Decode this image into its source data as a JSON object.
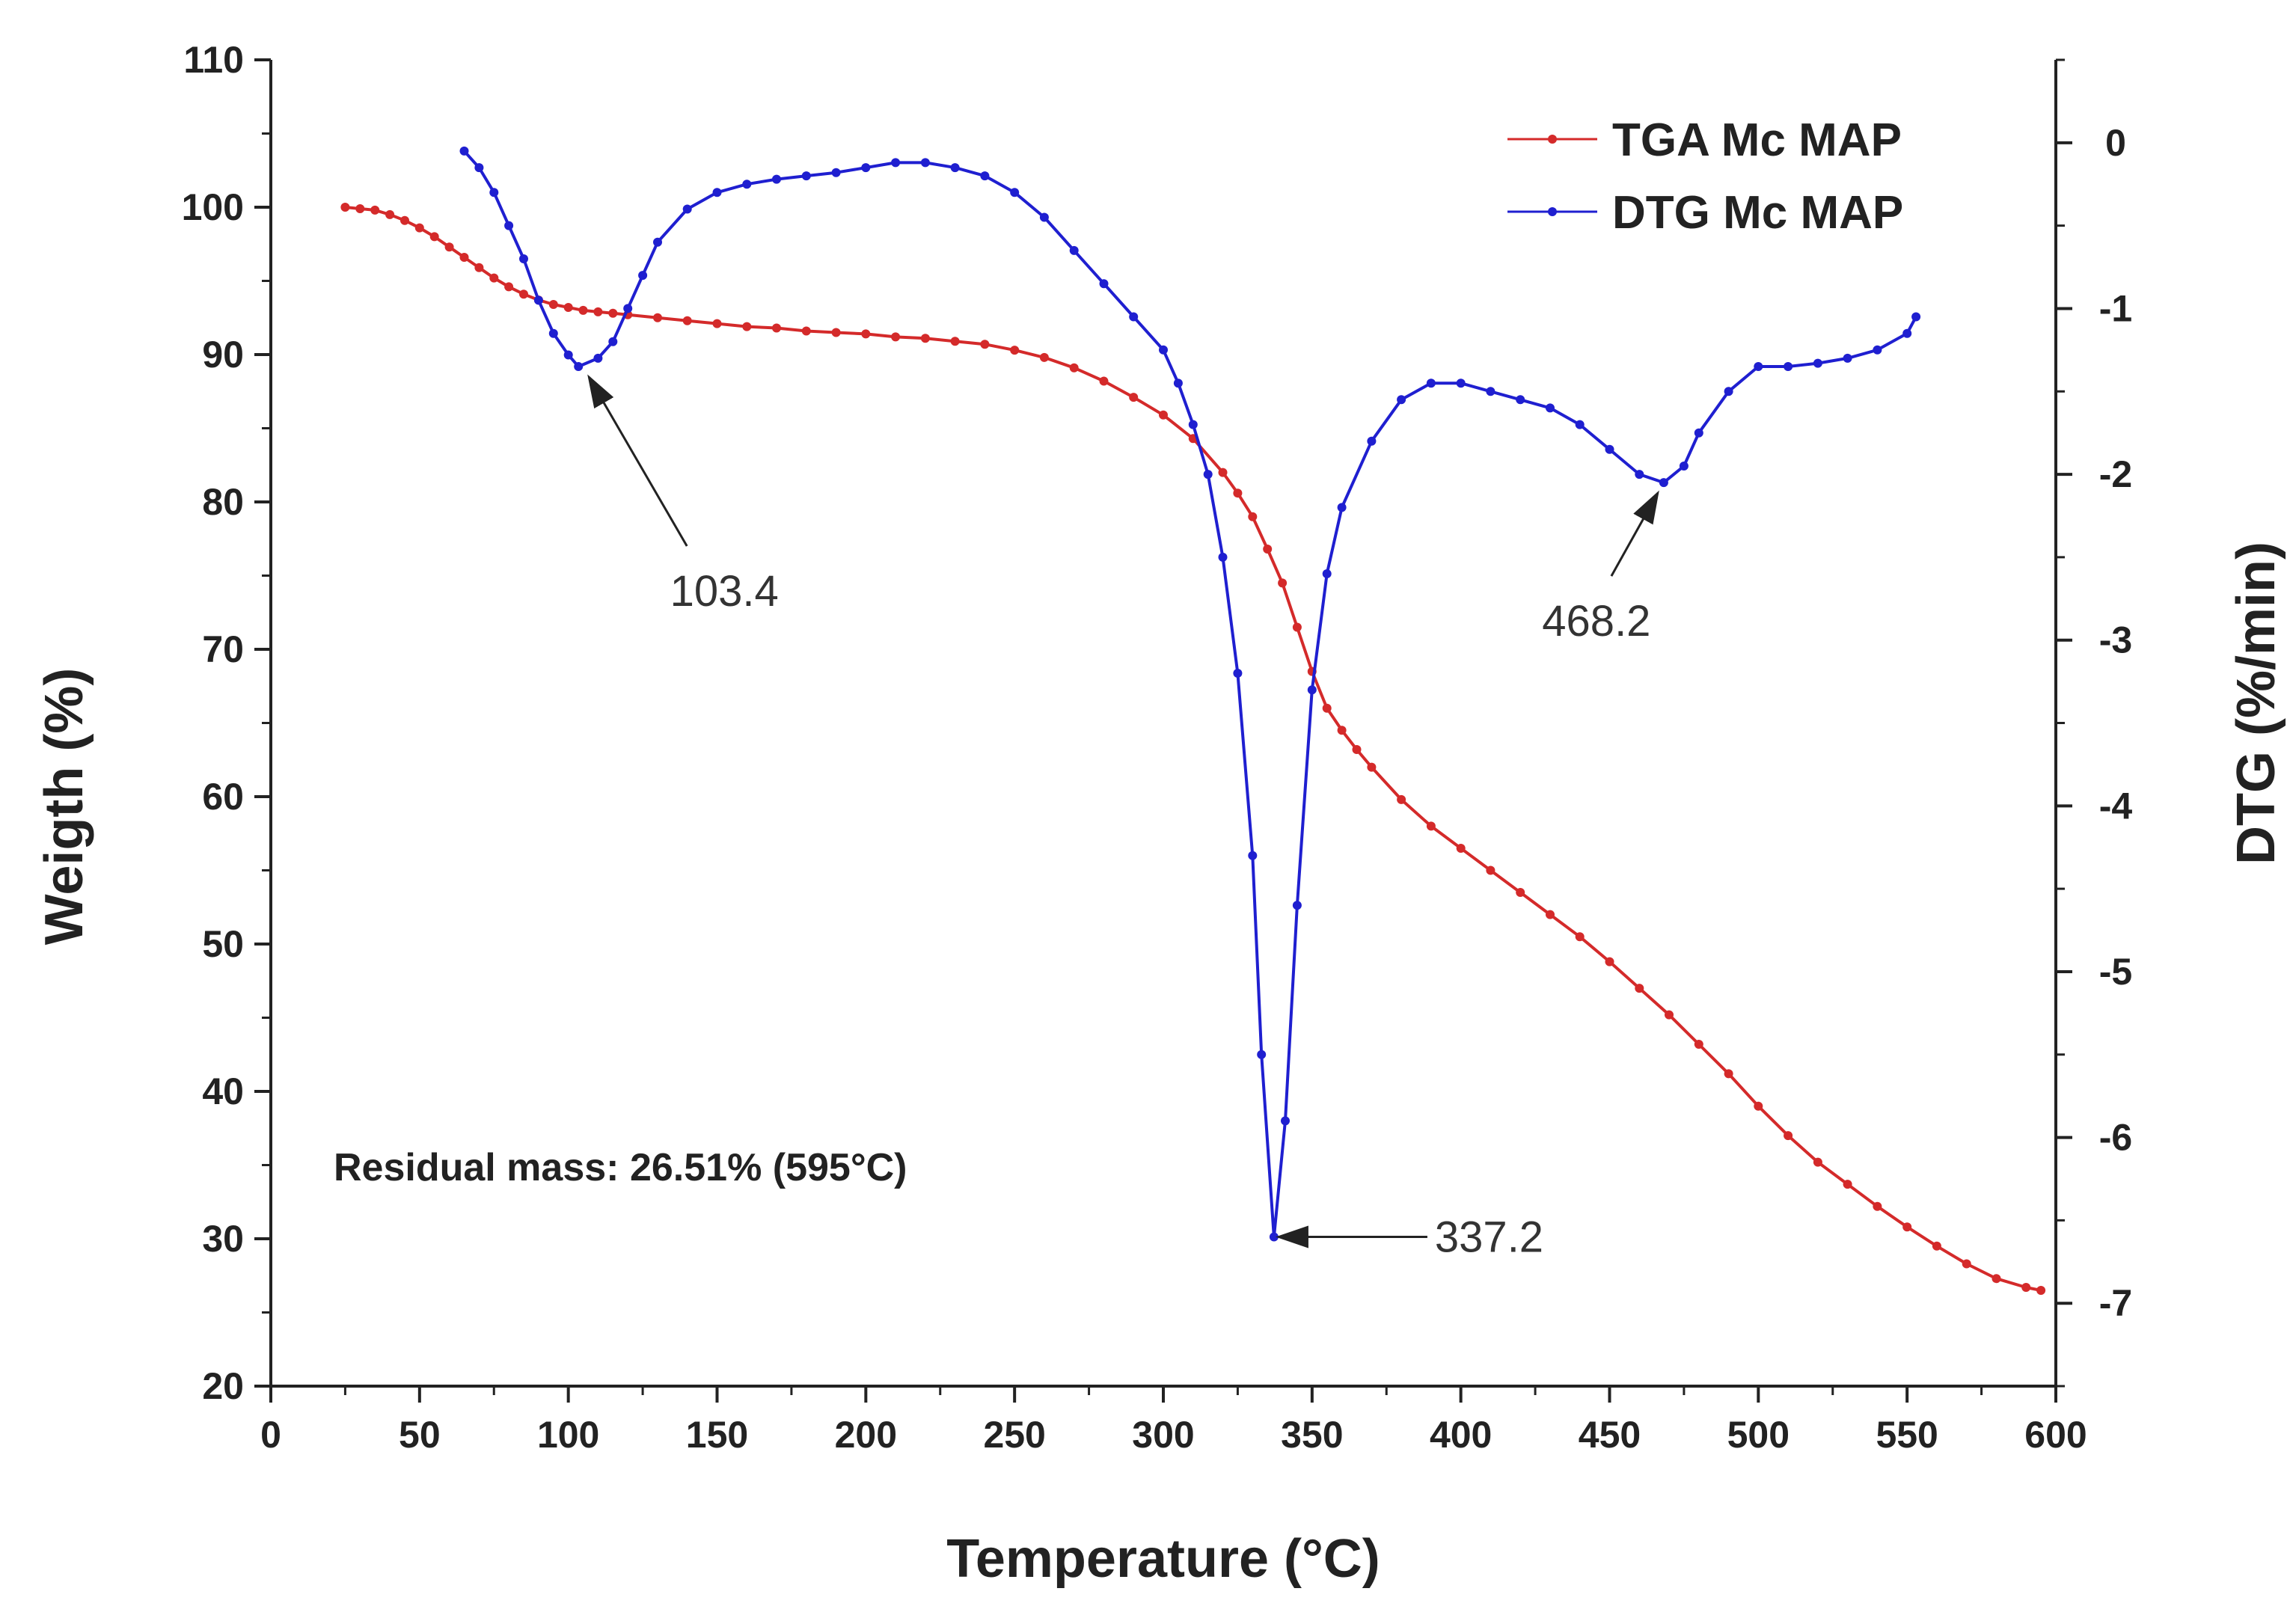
{
  "chart_data": {
    "type": "line",
    "title": "",
    "xlabel": "Temperature (°C)",
    "ylabel": "Weigth (%)",
    "y2label": "DTG (%/min)",
    "xlim": [
      0,
      600
    ],
    "ylim": [
      20,
      110
    ],
    "y2lim": [
      -7.5,
      0.5
    ],
    "xticks": [
      0,
      50,
      100,
      150,
      200,
      250,
      300,
      350,
      400,
      450,
      500,
      550,
      600
    ],
    "yticks": [
      20,
      30,
      40,
      50,
      60,
      70,
      80,
      90,
      100,
      110
    ],
    "y2ticks": [
      0,
      -1,
      -2,
      -3,
      -4,
      -5,
      -6,
      -7
    ],
    "legend_position": "top-right",
    "colors": {
      "tga": "#d42a2a",
      "dtg": "#1f1fd0",
      "axis": "#222222",
      "annotation": "#222222"
    },
    "series": [
      {
        "name": "TGA Mc MAP",
        "axis": "left",
        "color": "#d42a2a",
        "x": [
          25,
          30,
          35,
          40,
          45,
          50,
          55,
          60,
          65,
          70,
          75,
          80,
          85,
          90,
          95,
          100,
          105,
          110,
          115,
          120,
          130,
          140,
          150,
          160,
          170,
          180,
          190,
          200,
          210,
          220,
          230,
          240,
          250,
          260,
          270,
          280,
          290,
          300,
          310,
          320,
          325,
          330,
          335,
          340,
          345,
          350,
          355,
          360,
          365,
          370,
          380,
          390,
          400,
          410,
          420,
          430,
          440,
          450,
          460,
          470,
          480,
          490,
          500,
          510,
          520,
          530,
          540,
          550,
          560,
          570,
          580,
          590,
          595
        ],
        "values": [
          100.0,
          99.9,
          99.8,
          99.5,
          99.1,
          98.6,
          98.0,
          97.3,
          96.6,
          95.9,
          95.2,
          94.6,
          94.1,
          93.7,
          93.4,
          93.2,
          93.0,
          92.9,
          92.8,
          92.7,
          92.5,
          92.3,
          92.1,
          91.9,
          91.8,
          91.6,
          91.5,
          91.4,
          91.2,
          91.1,
          90.9,
          90.7,
          90.3,
          89.8,
          89.1,
          88.2,
          87.1,
          85.9,
          84.3,
          82.0,
          80.6,
          79.0,
          76.8,
          74.5,
          71.5,
          68.5,
          66.0,
          64.5,
          63.2,
          62.0,
          59.8,
          58.0,
          56.5,
          55.0,
          53.5,
          52.0,
          50.5,
          48.8,
          47.0,
          45.2,
          43.2,
          41.2,
          39.0,
          37.0,
          35.2,
          33.7,
          32.2,
          30.8,
          29.5,
          28.3,
          27.3,
          26.7,
          26.5
        ]
      },
      {
        "name": "DTG Mc MAP",
        "axis": "right",
        "color": "#1f1fd0",
        "x": [
          65,
          70,
          75,
          80,
          85,
          90,
          95,
          100,
          103.4,
          110,
          115,
          120,
          125,
          130,
          140,
          150,
          160,
          170,
          180,
          190,
          200,
          210,
          220,
          230,
          240,
          250,
          260,
          270,
          280,
          290,
          300,
          305,
          310,
          315,
          320,
          325,
          330,
          333,
          337.2,
          341,
          345,
          350,
          355,
          360,
          370,
          380,
          390,
          400,
          410,
          420,
          430,
          440,
          450,
          460,
          468.2,
          475,
          480,
          490,
          500,
          510,
          520,
          530,
          540,
          550,
          553
        ],
        "values": [
          -0.05,
          -0.15,
          -0.3,
          -0.5,
          -0.7,
          -0.95,
          -1.15,
          -1.28,
          -1.35,
          -1.3,
          -1.2,
          -1.0,
          -0.8,
          -0.6,
          -0.4,
          -0.3,
          -0.25,
          -0.22,
          -0.2,
          -0.18,
          -0.15,
          -0.12,
          -0.12,
          -0.15,
          -0.2,
          -0.3,
          -0.45,
          -0.65,
          -0.85,
          -1.05,
          -1.25,
          -1.45,
          -1.7,
          -2.0,
          -2.5,
          -3.2,
          -4.3,
          -5.5,
          -6.6,
          -5.9,
          -4.6,
          -3.3,
          -2.6,
          -2.2,
          -1.8,
          -1.55,
          -1.45,
          -1.45,
          -1.5,
          -1.55,
          -1.6,
          -1.7,
          -1.85,
          -2.0,
          -2.05,
          -1.95,
          -1.75,
          -1.5,
          -1.35,
          -1.35,
          -1.33,
          -1.3,
          -1.25,
          -1.15,
          -1.05
        ]
      }
    ],
    "annotations": [
      {
        "text": "103.4",
        "x": 103.4,
        "y": -1.35,
        "axis": "right"
      },
      {
        "text": "337.2",
        "x": 337.2,
        "y": -6.6,
        "axis": "right"
      },
      {
        "text": "468.2",
        "x": 468.2,
        "y": -2.05,
        "axis": "right"
      }
    ],
    "note": "Residual mass: 26.51% (595°C)"
  }
}
